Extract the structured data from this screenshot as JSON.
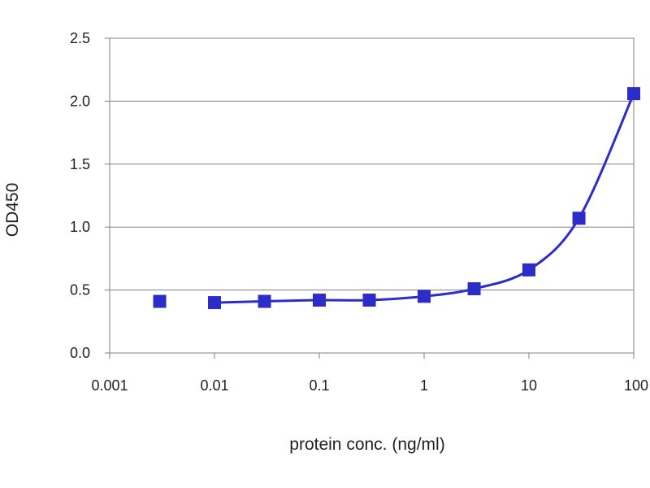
{
  "chart_data": {
    "type": "line",
    "title": "",
    "xlabel": "protein conc. (ng/ml)",
    "ylabel": "OD450",
    "x_scale": "log",
    "xlim": [
      0.001,
      100
    ],
    "ylim": [
      0,
      2.5
    ],
    "x_ticks": [
      "0.001",
      "0.01",
      "0.1",
      "1",
      "10",
      "100"
    ],
    "y_ticks": [
      "0.0",
      "0.5",
      "1.0",
      "1.5",
      "2.0",
      "2.5"
    ],
    "grid": "horizontal",
    "legend": "none",
    "series": [
      {
        "marker": "square",
        "color": "#2c2cc8",
        "points": [
          {
            "x": 0.003,
            "y": 0.41
          },
          {
            "x": 0.01,
            "y": 0.4
          },
          {
            "x": 0.03,
            "y": 0.41
          },
          {
            "x": 0.1,
            "y": 0.42
          },
          {
            "x": 0.3,
            "y": 0.42
          },
          {
            "x": 1,
            "y": 0.45
          },
          {
            "x": 3,
            "y": 0.51
          },
          {
            "x": 10,
            "y": 0.66
          },
          {
            "x": 30,
            "y": 1.07
          },
          {
            "x": 100,
            "y": 2.06
          }
        ]
      }
    ]
  }
}
